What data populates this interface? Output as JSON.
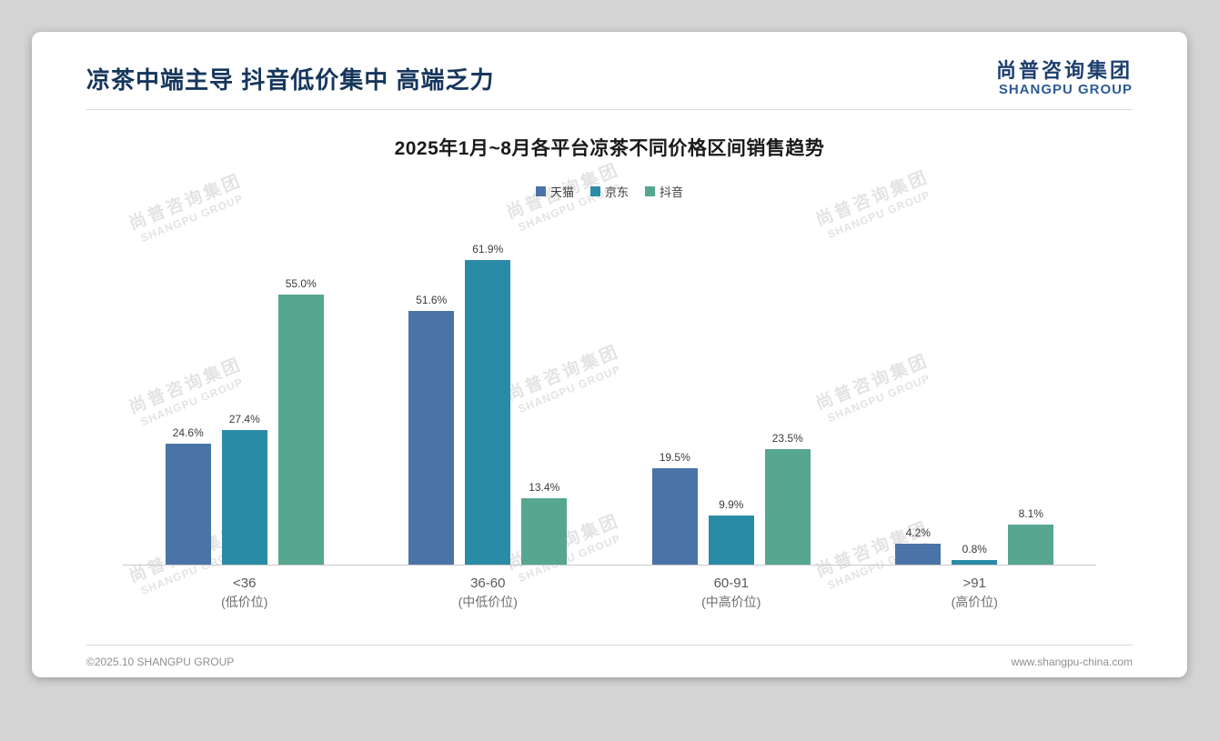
{
  "header": {
    "title": "凉茶中端主导 抖音低价集中 高端乏力",
    "logo_cn": "尚普咨询集团",
    "logo_en": "SHANGPU GROUP"
  },
  "watermark": {
    "line1": "尚普咨询集团",
    "line2": "SHANGPU GROUP"
  },
  "footer": {
    "left": "©2025.10 SHANGPU GROUP",
    "right": "www.shangpu-china.com"
  },
  "chart_data": {
    "type": "bar",
    "title": "2025年1月~8月各平台凉茶不同价格区间销售趋势",
    "categories": [
      "<36",
      "36-60",
      "60-91",
      ">91"
    ],
    "category_sublabels": [
      "(低价位)",
      "(中低价位)",
      "(中高价位)",
      "(高价位)"
    ],
    "series": [
      {
        "name": "天猫",
        "color": "#4a74a8",
        "values": [
          24.6,
          51.6,
          19.5,
          4.2
        ]
      },
      {
        "name": "京东",
        "color": "#2a8ba6",
        "values": [
          27.4,
          61.9,
          9.9,
          0.8
        ]
      },
      {
        "name": "抖音",
        "color": "#56a690",
        "values": [
          55.0,
          13.4,
          23.5,
          8.1
        ]
      }
    ],
    "value_label_format": "percent_one_decimal",
    "ylim": [
      0,
      70
    ],
    "grid": false,
    "legend_position": "top",
    "xlabel": "",
    "ylabel": ""
  }
}
